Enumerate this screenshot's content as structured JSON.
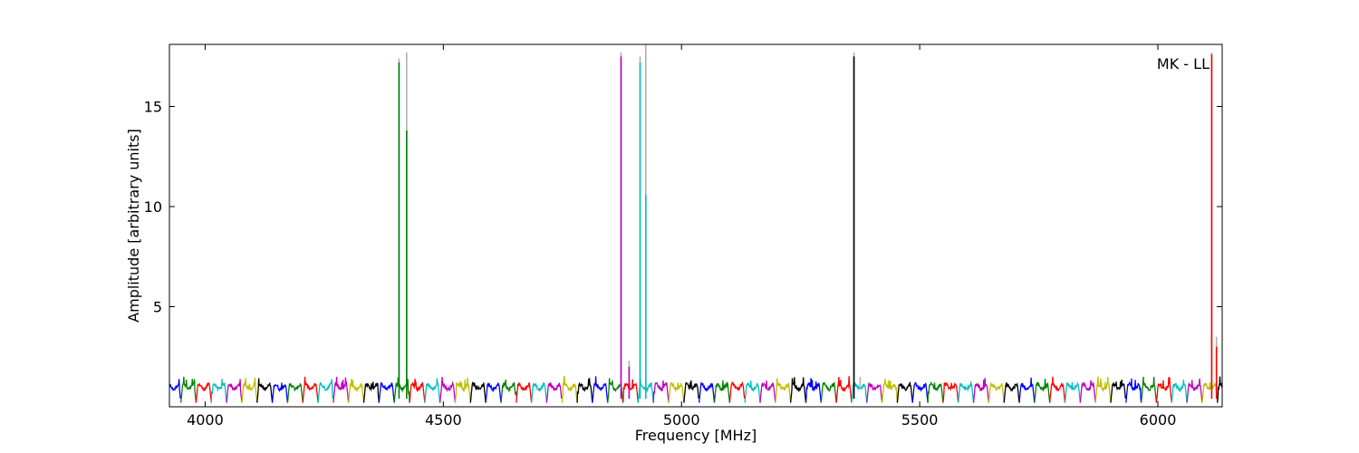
{
  "chart_data": {
    "type": "line",
    "title": "",
    "annotation": "MK - LL",
    "xlabel": "Frequency [MHz]",
    "ylabel": "Amplitude [arbitrary units]",
    "xlim": [
      3925,
      6135
    ],
    "ylim": [
      0.0,
      18.1
    ],
    "xticks": [
      4000,
      4500,
      5000,
      5500,
      6000
    ],
    "xtick_labels": [
      "4000",
      "4500",
      "5000",
      "5500",
      "6000"
    ],
    "yticks": [
      5,
      10,
      15
    ],
    "ytick_labels": [
      "5",
      "10",
      "15"
    ],
    "grid": false,
    "legend": "none",
    "series_colors": [
      "#0000ff",
      "#008000",
      "#ff0000",
      "#00bfbf",
      "#bf00bf",
      "#bfbf00",
      "#000000"
    ],
    "band_width_mhz": 32,
    "baseline_mean": 1.0,
    "baseline_min": 0.2,
    "baseline_max": 1.6,
    "spikes": [
      {
        "x": 4407,
        "y": 17.2,
        "color": "#008000"
      },
      {
        "x": 4423,
        "y": 13.8,
        "color": "#008000"
      },
      {
        "x": 4873,
        "y": 17.5,
        "color": "#bf00bf"
      },
      {
        "x": 4890,
        "y": 2.0,
        "color": "#bf00bf"
      },
      {
        "x": 4913,
        "y": 17.2,
        "color": "#00bfbf"
      },
      {
        "x": 4925,
        "y": 10.6,
        "color": "#00bfbf"
      },
      {
        "x": 5362,
        "y": 17.5,
        "color": "#000000"
      },
      {
        "x": 6113,
        "y": 17.6,
        "color": "#ff0000"
      },
      {
        "x": 6123,
        "y": 3.0,
        "color": "#ff0000"
      }
    ],
    "reference_spikes": [
      {
        "x": 4407,
        "y": 17.4
      },
      {
        "x": 4423,
        "y": 17.7
      },
      {
        "x": 4873,
        "y": 17.7
      },
      {
        "x": 4890,
        "y": 2.3
      },
      {
        "x": 4913,
        "y": 17.5
      },
      {
        "x": 4925,
        "y": 18.1
      },
      {
        "x": 5362,
        "y": 17.7
      },
      {
        "x": 5375,
        "y": 1.5
      },
      {
        "x": 6113,
        "y": 17.7
      },
      {
        "x": 6123,
        "y": 3.5
      }
    ]
  }
}
